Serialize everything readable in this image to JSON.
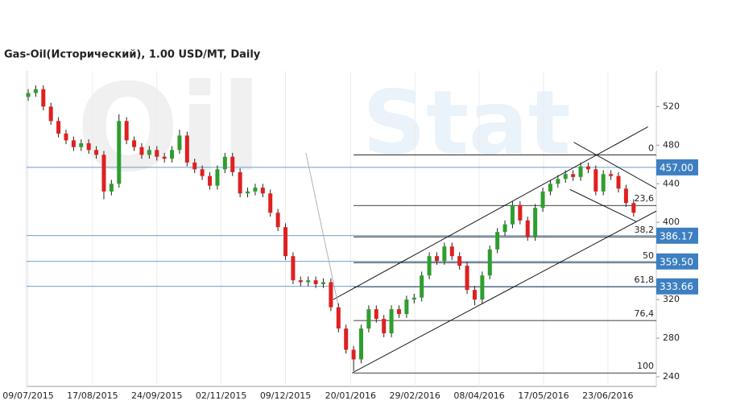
{
  "chart_data": {
    "type": "candlestick",
    "title": "Gas-Oil(Исторический), 1.00 USD/MT, Daily",
    "watermark": [
      "Oil",
      "Stat"
    ],
    "up_color": "#2e9e2e",
    "down_color": "#e02020",
    "xlim": [
      0,
      83
    ],
    "ylim": [
      230,
      557
    ],
    "yticks": [
      240,
      280,
      320,
      400,
      440,
      480,
      520
    ],
    "xticks": [
      {
        "value": 0,
        "label": "09/07/2015"
      },
      {
        "value": 8.5,
        "label": "17/08/2015"
      },
      {
        "value": 17,
        "label": "24/09/2015"
      },
      {
        "value": 25.5,
        "label": "02/11/2015"
      },
      {
        "value": 34,
        "label": "09/12/2015"
      },
      {
        "value": 42.6,
        "label": "20/01/2016"
      },
      {
        "value": 51.1,
        "label": "29/02/2016"
      },
      {
        "value": 59.6,
        "label": "08/04/2016"
      },
      {
        "value": 68.1,
        "label": "17/05/2016"
      },
      {
        "value": 76.6,
        "label": "23/06/2016"
      }
    ],
    "open": [
      530,
      534,
      538,
      520,
      505,
      492,
      485,
      478,
      482,
      475,
      470,
      432,
      440,
      505,
      485,
      478,
      470,
      475,
      468,
      466,
      475,
      490,
      462,
      455,
      448,
      438,
      455,
      468,
      452,
      430,
      432,
      436,
      430,
      410,
      395,
      365,
      340,
      338,
      340,
      336,
      338,
      312,
      290,
      268,
      258,
      290,
      310,
      300,
      285,
      310,
      305,
      320,
      322,
      345,
      365,
      360,
      375,
      365,
      355,
      330,
      320,
      345,
      372,
      390,
      398,
      418,
      402,
      385,
      415,
      432,
      440,
      445,
      450,
      447,
      458,
      455,
      432,
      450,
      448,
      435,
      420
    ],
    "high": [
      538,
      542,
      542,
      524,
      509,
      496,
      489,
      486,
      486,
      479,
      474,
      444,
      512,
      509,
      489,
      482,
      479,
      479,
      472,
      479,
      496,
      494,
      466,
      459,
      452,
      459,
      472,
      472,
      456,
      436,
      440,
      440,
      434,
      414,
      399,
      369,
      344,
      344,
      344,
      342,
      342,
      316,
      294,
      272,
      294,
      314,
      314,
      304,
      314,
      314,
      324,
      326,
      349,
      369,
      369,
      379,
      379,
      369,
      359,
      334,
      349,
      376,
      394,
      402,
      422,
      422,
      406,
      419,
      436,
      444,
      449,
      454,
      454,
      462,
      462,
      459,
      454,
      454,
      452,
      439,
      424
    ],
    "low": [
      526,
      530,
      516,
      501,
      488,
      481,
      474,
      474,
      471,
      466,
      424,
      428,
      436,
      481,
      474,
      466,
      466,
      464,
      462,
      462,
      471,
      458,
      451,
      444,
      434,
      434,
      451,
      448,
      426,
      426,
      428,
      426,
      406,
      391,
      361,
      336,
      334,
      334,
      332,
      332,
      308,
      286,
      264,
      246,
      254,
      286,
      296,
      281,
      281,
      301,
      301,
      316,
      318,
      341,
      356,
      356,
      361,
      351,
      326,
      314,
      316,
      341,
      368,
      386,
      394,
      398,
      381,
      381,
      411,
      428,
      436,
      441,
      443,
      443,
      451,
      428,
      428,
      444,
      431,
      416,
      406
    ],
    "close": [
      534,
      538,
      520,
      505,
      492,
      485,
      478,
      482,
      475,
      470,
      432,
      440,
      505,
      485,
      478,
      470,
      475,
      468,
      466,
      475,
      490,
      462,
      455,
      448,
      438,
      455,
      468,
      452,
      430,
      432,
      436,
      430,
      410,
      395,
      365,
      340,
      338,
      340,
      336,
      338,
      312,
      290,
      268,
      258,
      290,
      310,
      300,
      285,
      310,
      305,
      320,
      322,
      345,
      365,
      360,
      375,
      365,
      355,
      330,
      320,
      345,
      372,
      390,
      398,
      418,
      402,
      385,
      415,
      432,
      440,
      445,
      450,
      447,
      458,
      455,
      432,
      450,
      448,
      435,
      420,
      410
    ],
    "levels": [
      {
        "value": 457.0,
        "label": "457.00"
      },
      {
        "value": 386.17,
        "label": "386.17"
      },
      {
        "value": 359.5,
        "label": "359.50"
      },
      {
        "value": 333.66,
        "label": "333.66"
      }
    ],
    "level_color": "#3d7fc1",
    "fib_start": 43,
    "fib_levels": [
      {
        "value": 470,
        "label": "0"
      },
      {
        "value": 417.5,
        "label": "23,6"
      },
      {
        "value": 385,
        "label": "38,2"
      },
      {
        "value": 358.3,
        "label": "50"
      },
      {
        "value": 333.3,
        "label": "61,8"
      },
      {
        "value": 298.3,
        "label": "76,4"
      },
      {
        "value": 244,
        "label": "100"
      }
    ],
    "trend_lines": [
      {
        "x1": 40.3,
        "y1": 320,
        "x2": 81.9,
        "y2": 499,
        "color": "#000000"
      },
      {
        "x1": 42.8,
        "y1": 244,
        "x2": 83,
        "y2": 411.7,
        "color": "#000000"
      },
      {
        "x1": 72.1,
        "y1": 483,
        "x2": 83,
        "y2": 435,
        "color": "#000000"
      },
      {
        "x1": 71.6,
        "y1": 434,
        "x2": 80.3,
        "y2": 401,
        "color": "#000000"
      },
      {
        "x1": 36.7,
        "y1": 472,
        "x2": 41,
        "y2": 313,
        "color": "#aaaaaa"
      }
    ]
  }
}
